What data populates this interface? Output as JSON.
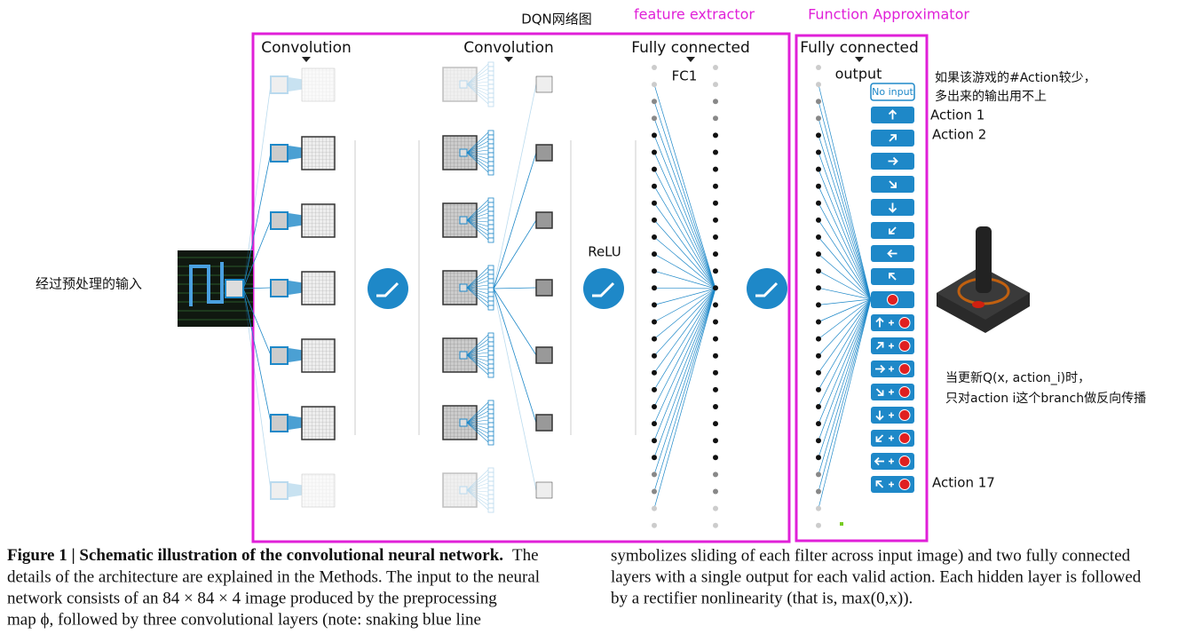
{
  "title": "DQN网络图",
  "section_labels": [
    "feature extractor",
    "Function Approximator"
  ],
  "layer_headers": [
    "Convolution",
    "Convolution",
    "Fully connected",
    "Fully connected"
  ],
  "layer_labels": {
    "fc1": "FC1",
    "output": "output",
    "relu": "ReLU"
  },
  "input_label": "经过预处理的输入",
  "notes": {
    "unused_outputs": [
      "如果该游戏的#Action较少，",
      "多出来的输出用不上"
    ],
    "backprop": [
      "当更新Q(x, action_i)时，",
      "只对action i这个branch做反向传播"
    ]
  },
  "buttons": {
    "no_input": "No input"
  },
  "action_labels": [
    "Action 1",
    "Action 2",
    "Action 17"
  ],
  "caption": {
    "title": "Figure 1 | Schematic illustration of the convolutional neural network.",
    "left_lines": [
      "The",
      "details of the architecture are explained in the Methods. The input to the neural",
      "network consists of an 84 × 84 × 4 image produced by the preprocessing",
      "map ϕ, followed by three convolutional layers (note: snaking blue line"
    ],
    "right_lines": [
      "symbolizes sliding of each filter across input image) and two fully connected",
      "layers with a single output for each valid action. Each hidden layer is followed",
      "by a rectifier nonlinearity (that is, max(0,x))."
    ]
  }
}
